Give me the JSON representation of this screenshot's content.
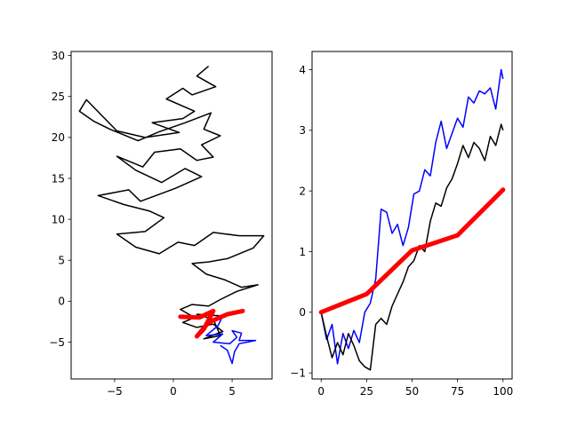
{
  "chart_data": [
    {
      "type": "line",
      "title": "",
      "xlabel": "",
      "ylabel": "",
      "xlim": [
        -8.7,
        8.4
      ],
      "ylim": [
        -9.5,
        30.5
      ],
      "xticks": [
        -5,
        0,
        5
      ],
      "yticks": [
        -5,
        0,
        5,
        10,
        15,
        20,
        25,
        30
      ],
      "grid": false,
      "legend": "none",
      "series": [
        {
          "color": "#000000",
          "style": "random-walk",
          "points": [
            [
              3.0,
              28.7
            ],
            [
              2.0,
              27.5
            ],
            [
              3.6,
              26.2
            ],
            [
              1.6,
              25.2
            ],
            [
              0.8,
              26.0
            ],
            [
              -0.6,
              24.7
            ],
            [
              1.8,
              23.2
            ],
            [
              0.8,
              22.3
            ],
            [
              -1.8,
              21.8
            ],
            [
              0.5,
              20.6
            ],
            [
              -2.4,
              20.0
            ],
            [
              -4.8,
              20.8
            ],
            [
              -7.4,
              24.6
            ],
            [
              -8.0,
              23.2
            ],
            [
              -6.8,
              22.0
            ],
            [
              -5.4,
              21.0
            ],
            [
              -3.0,
              19.6
            ],
            [
              -1.2,
              20.7
            ],
            [
              1.0,
              21.8
            ],
            [
              3.2,
              23.0
            ],
            [
              2.6,
              21.0
            ],
            [
              4.0,
              20.2
            ],
            [
              2.4,
              19.1
            ],
            [
              3.4,
              17.6
            ],
            [
              2.0,
              17.2
            ],
            [
              0.6,
              18.6
            ],
            [
              -1.6,
              18.2
            ],
            [
              -2.6,
              16.4
            ],
            [
              -4.8,
              17.7
            ],
            [
              -3.2,
              16.0
            ],
            [
              -1.0,
              14.5
            ],
            [
              1.0,
              16.2
            ],
            [
              2.4,
              15.2
            ],
            [
              0.2,
              13.8
            ],
            [
              -2.8,
              12.2
            ],
            [
              -3.8,
              13.6
            ],
            [
              -6.4,
              12.9
            ],
            [
              -4.2,
              11.8
            ],
            [
              -2.0,
              11.0
            ],
            [
              -0.8,
              10.2
            ],
            [
              -2.4,
              8.5
            ],
            [
              -4.8,
              8.2
            ],
            [
              -3.2,
              6.6
            ],
            [
              -1.2,
              5.8
            ],
            [
              0.4,
              7.2
            ],
            [
              1.8,
              6.8
            ],
            [
              3.4,
              8.4
            ],
            [
              5.6,
              8.0
            ],
            [
              7.7,
              8.0
            ],
            [
              6.8,
              6.5
            ],
            [
              4.6,
              5.2
            ],
            [
              3.0,
              4.8
            ],
            [
              1.6,
              4.6
            ],
            [
              2.8,
              3.3
            ],
            [
              4.4,
              2.6
            ],
            [
              5.8,
              1.7
            ],
            [
              7.2,
              2.0
            ],
            [
              5.4,
              1.2
            ],
            [
              4.0,
              0.2
            ],
            [
              3.0,
              -0.6
            ],
            [
              1.6,
              -0.4
            ],
            [
              0.6,
              -1.0
            ],
            [
              1.8,
              -2.0
            ],
            [
              0.8,
              -2.6
            ],
            [
              2.0,
              -3.2
            ],
            [
              3.4,
              -2.8
            ],
            [
              4.2,
              -3.7
            ],
            [
              2.6,
              -4.6
            ],
            [
              4.0,
              -4.2
            ],
            [
              3.4,
              -2.2
            ],
            [
              2.0,
              -1.6
            ],
            [
              4.2,
              -1.8
            ]
          ]
        },
        {
          "color": "#0000ff",
          "style": "random-walk",
          "points": [
            [
              4.2,
              -1.8
            ],
            [
              3.8,
              -3.0
            ],
            [
              2.8,
              -4.2
            ],
            [
              4.2,
              -4.0
            ],
            [
              3.4,
              -5.0
            ],
            [
              4.8,
              -5.2
            ],
            [
              5.4,
              -4.4
            ],
            [
              5.0,
              -3.6
            ],
            [
              5.8,
              -3.9
            ],
            [
              5.6,
              -4.8
            ],
            [
              7.0,
              -4.8
            ],
            [
              5.6,
              -5.2
            ],
            [
              5.2,
              -6.2
            ],
            [
              5.0,
              -7.6
            ],
            [
              4.6,
              -6.0
            ],
            [
              4.0,
              -5.4
            ]
          ]
        },
        {
          "color": "#ff0000",
          "style": "thick",
          "points": [
            [
              0.6,
              -1.9
            ],
            [
              2.2,
              -2.0
            ],
            [
              3.4,
              -1.2
            ],
            [
              2.6,
              -3.4
            ],
            [
              2.0,
              -4.3
            ],
            [
              3.0,
              -2.6
            ],
            [
              4.6,
              -1.6
            ],
            [
              5.9,
              -1.2
            ]
          ]
        }
      ]
    },
    {
      "type": "line",
      "title": "",
      "xlabel": "",
      "ylabel": "",
      "xlim": [
        -5,
        105
      ],
      "ylim": [
        -1.1,
        4.3
      ],
      "xticks": [
        0,
        25,
        50,
        75,
        100
      ],
      "yticks": [
        -1,
        0,
        1,
        2,
        3,
        4
      ],
      "grid": false,
      "legend": "none",
      "series": [
        {
          "color": "#0000ff",
          "x": [
            0,
            3,
            6,
            9,
            12,
            15,
            18,
            21,
            24,
            27,
            30,
            33,
            36,
            39,
            42,
            45,
            48,
            51,
            54,
            57,
            60,
            63,
            66,
            69,
            72,
            75,
            78,
            81,
            84,
            87,
            90,
            93,
            96,
            99,
            100
          ],
          "y": [
            0.0,
            -0.45,
            -0.2,
            -0.85,
            -0.35,
            -0.6,
            -0.3,
            -0.5,
            0.0,
            0.15,
            0.55,
            1.7,
            1.65,
            1.3,
            1.45,
            1.1,
            1.4,
            1.95,
            2.0,
            2.35,
            2.25,
            2.8,
            3.15,
            2.7,
            2.95,
            3.2,
            3.05,
            3.55,
            3.45,
            3.65,
            3.6,
            3.7,
            3.35,
            4.0,
            3.85
          ]
        },
        {
          "color": "#000000",
          "x": [
            0,
            3,
            6,
            9,
            12,
            15,
            18,
            21,
            24,
            27,
            30,
            33,
            36,
            39,
            42,
            45,
            48,
            51,
            54,
            57,
            60,
            63,
            66,
            69,
            72,
            75,
            78,
            81,
            84,
            87,
            90,
            93,
            96,
            99,
            100
          ],
          "y": [
            0.0,
            -0.4,
            -0.75,
            -0.5,
            -0.7,
            -0.35,
            -0.55,
            -0.8,
            -0.9,
            -0.95,
            -0.2,
            -0.1,
            -0.2,
            0.1,
            0.3,
            0.5,
            0.75,
            0.85,
            1.1,
            1.0,
            1.5,
            1.8,
            1.75,
            2.05,
            2.2,
            2.45,
            2.75,
            2.55,
            2.8,
            2.7,
            2.5,
            2.9,
            2.75,
            3.1,
            3.0
          ]
        },
        {
          "color": "#ff0000",
          "style": "thick",
          "x": [
            0,
            25,
            50,
            75,
            100
          ],
          "y": [
            0.0,
            0.3,
            1.02,
            1.27,
            2.02
          ]
        }
      ]
    }
  ]
}
